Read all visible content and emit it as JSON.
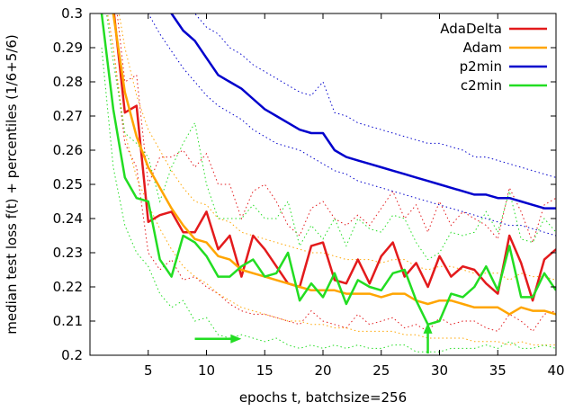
{
  "chart_data": {
    "type": "line",
    "xlabel": "epochs t, batchsize=256",
    "ylabel": "median test loss f(t) + percentiles (1/6+5/6)",
    "xlim": [
      0,
      40
    ],
    "ylim": [
      0.2,
      0.3
    ],
    "xticks": [
      5,
      10,
      15,
      20,
      25,
      30,
      35,
      40
    ],
    "yticks": [
      0.2,
      0.21,
      0.22,
      0.23,
      0.24,
      0.25,
      0.26,
      0.27,
      0.28,
      0.29,
      0.3
    ],
    "legend_position": "top-right",
    "grid": false,
    "series": [
      {
        "name": "AdaDelta",
        "color": "#e31a1c",
        "x": [
          1,
          2,
          3,
          4,
          5,
          6,
          7,
          8,
          9,
          10,
          11,
          12,
          13,
          14,
          15,
          16,
          17,
          18,
          19,
          20,
          21,
          22,
          23,
          24,
          25,
          26,
          27,
          28,
          29,
          30,
          31,
          32,
          33,
          34,
          35,
          36,
          37,
          38,
          39,
          40
        ],
        "median": [
          0.32,
          0.302,
          0.271,
          0.273,
          0.239,
          0.241,
          0.242,
          0.236,
          0.236,
          0.242,
          0.231,
          0.235,
          0.223,
          0.235,
          0.231,
          0.226,
          0.221,
          0.22,
          0.232,
          0.233,
          0.222,
          0.221,
          0.228,
          0.221,
          0.229,
          0.233,
          0.223,
          0.227,
          0.22,
          0.229,
          0.223,
          0.226,
          0.225,
          0.221,
          0.218,
          0.235,
          0.227,
          0.216,
          0.228,
          0.231
        ],
        "lower": [
          0.31,
          0.29,
          0.262,
          0.255,
          0.23,
          0.225,
          0.228,
          0.222,
          0.223,
          0.22,
          0.218,
          0.215,
          0.213,
          0.212,
          0.212,
          0.211,
          0.21,
          0.209,
          0.213,
          0.21,
          0.209,
          0.208,
          0.212,
          0.209,
          0.21,
          0.211,
          0.208,
          0.209,
          0.207,
          0.211,
          0.209,
          0.21,
          0.21,
          0.208,
          0.207,
          0.212,
          0.21,
          0.207,
          0.212,
          0.213
        ],
        "upper": [
          0.33,
          0.31,
          0.28,
          0.282,
          0.25,
          0.258,
          0.258,
          0.26,
          0.255,
          0.259,
          0.25,
          0.25,
          0.24,
          0.248,
          0.25,
          0.245,
          0.238,
          0.235,
          0.243,
          0.245,
          0.24,
          0.238,
          0.241,
          0.238,
          0.243,
          0.248,
          0.24,
          0.244,
          0.236,
          0.245,
          0.238,
          0.242,
          0.24,
          0.238,
          0.234,
          0.249,
          0.242,
          0.233,
          0.244,
          0.246
        ]
      },
      {
        "name": "Adam",
        "color": "#ffa500",
        "x": [
          1,
          2,
          3,
          4,
          5,
          6,
          7,
          8,
          9,
          10,
          11,
          12,
          13,
          14,
          15,
          16,
          17,
          18,
          19,
          20,
          21,
          22,
          23,
          24,
          25,
          26,
          27,
          28,
          29,
          30,
          31,
          32,
          33,
          34,
          35,
          36,
          37,
          38,
          39,
          40
        ],
        "median": [
          0.32,
          0.3,
          0.277,
          0.264,
          0.255,
          0.249,
          0.243,
          0.238,
          0.234,
          0.233,
          0.229,
          0.228,
          0.225,
          0.224,
          0.223,
          0.222,
          0.221,
          0.22,
          0.219,
          0.219,
          0.219,
          0.218,
          0.218,
          0.218,
          0.217,
          0.218,
          0.218,
          0.216,
          0.215,
          0.216,
          0.216,
          0.215,
          0.214,
          0.214,
          0.214,
          0.212,
          0.214,
          0.213,
          0.213,
          0.212
        ],
        "lower": [
          0.31,
          0.29,
          0.265,
          0.252,
          0.244,
          0.237,
          0.231,
          0.226,
          0.223,
          0.221,
          0.218,
          0.216,
          0.214,
          0.213,
          0.212,
          0.211,
          0.21,
          0.21,
          0.209,
          0.209,
          0.208,
          0.208,
          0.207,
          0.207,
          0.207,
          0.207,
          0.206,
          0.206,
          0.205,
          0.205,
          0.205,
          0.205,
          0.204,
          0.204,
          0.204,
          0.203,
          0.204,
          0.203,
          0.203,
          0.203
        ],
        "upper": [
          0.33,
          0.31,
          0.29,
          0.276,
          0.266,
          0.26,
          0.254,
          0.249,
          0.245,
          0.244,
          0.24,
          0.239,
          0.236,
          0.235,
          0.234,
          0.233,
          0.232,
          0.231,
          0.23,
          0.23,
          0.229,
          0.228,
          0.228,
          0.228,
          0.227,
          0.228,
          0.228,
          0.226,
          0.225,
          0.226,
          0.226,
          0.225,
          0.224,
          0.224,
          0.224,
          0.222,
          0.224,
          0.223,
          0.223,
          0.222
        ]
      },
      {
        "name": "p2min",
        "color": "#0000cc",
        "x": [
          1,
          2,
          3,
          4,
          5,
          6,
          7,
          8,
          9,
          10,
          11,
          12,
          13,
          14,
          15,
          16,
          17,
          18,
          19,
          20,
          21,
          22,
          23,
          24,
          25,
          26,
          27,
          28,
          29,
          30,
          31,
          32,
          33,
          34,
          35,
          36,
          37,
          38,
          39,
          40
        ],
        "median": [
          0.34,
          0.33,
          0.32,
          0.315,
          0.31,
          0.305,
          0.3,
          0.295,
          0.292,
          0.287,
          0.282,
          0.28,
          0.278,
          0.275,
          0.272,
          0.27,
          0.268,
          0.266,
          0.265,
          0.265,
          0.26,
          0.258,
          0.257,
          0.256,
          0.255,
          0.254,
          0.253,
          0.252,
          0.251,
          0.25,
          0.249,
          0.248,
          0.247,
          0.247,
          0.246,
          0.246,
          0.245,
          0.244,
          0.243,
          0.243
        ],
        "lower": [
          0.33,
          0.32,
          0.31,
          0.305,
          0.3,
          0.294,
          0.289,
          0.284,
          0.28,
          0.276,
          0.273,
          0.271,
          0.269,
          0.266,
          0.264,
          0.262,
          0.261,
          0.26,
          0.258,
          0.256,
          0.254,
          0.253,
          0.251,
          0.25,
          0.249,
          0.248,
          0.247,
          0.246,
          0.245,
          0.244,
          0.243,
          0.242,
          0.241,
          0.24,
          0.239,
          0.238,
          0.238,
          0.237,
          0.236,
          0.235
        ],
        "upper": [
          0.35,
          0.34,
          0.33,
          0.325,
          0.32,
          0.312,
          0.307,
          0.303,
          0.3,
          0.296,
          0.294,
          0.29,
          0.288,
          0.285,
          0.283,
          0.281,
          0.279,
          0.277,
          0.276,
          0.28,
          0.271,
          0.27,
          0.268,
          0.267,
          0.266,
          0.265,
          0.264,
          0.263,
          0.262,
          0.262,
          0.261,
          0.26,
          0.258,
          0.258,
          0.257,
          0.256,
          0.255,
          0.254,
          0.253,
          0.252
        ]
      },
      {
        "name": "c2min",
        "color": "#22dd22",
        "x": [
          1,
          2,
          3,
          4,
          5,
          6,
          7,
          8,
          9,
          10,
          11,
          12,
          13,
          14,
          15,
          16,
          17,
          18,
          19,
          20,
          21,
          22,
          23,
          24,
          25,
          26,
          27,
          28,
          29,
          30,
          31,
          32,
          33,
          34,
          35,
          36,
          37,
          38,
          39,
          40
        ],
        "median": [
          0.3,
          0.272,
          0.252,
          0.246,
          0.245,
          0.228,
          0.223,
          0.235,
          0.233,
          0.229,
          0.223,
          0.223,
          0.226,
          0.228,
          0.223,
          0.224,
          0.23,
          0.216,
          0.221,
          0.217,
          0.224,
          0.215,
          0.222,
          0.22,
          0.219,
          0.224,
          0.225,
          0.216,
          0.209,
          0.21,
          0.218,
          0.217,
          0.22,
          0.226,
          0.219,
          0.232,
          0.217,
          0.217,
          0.224,
          0.219
        ],
        "lower": [
          0.29,
          0.255,
          0.238,
          0.23,
          0.226,
          0.218,
          0.214,
          0.216,
          0.21,
          0.211,
          0.206,
          0.205,
          0.206,
          0.205,
          0.204,
          0.205,
          0.203,
          0.202,
          0.203,
          0.202,
          0.203,
          0.202,
          0.203,
          0.202,
          0.202,
          0.203,
          0.203,
          0.201,
          0.201,
          0.201,
          0.202,
          0.202,
          0.202,
          0.203,
          0.202,
          0.204,
          0.202,
          0.202,
          0.203,
          0.202
        ],
        "upper": [
          0.31,
          0.286,
          0.265,
          0.262,
          0.258,
          0.245,
          0.255,
          0.262,
          0.268,
          0.25,
          0.24,
          0.24,
          0.24,
          0.244,
          0.24,
          0.24,
          0.245,
          0.232,
          0.238,
          0.234,
          0.24,
          0.232,
          0.24,
          0.237,
          0.236,
          0.241,
          0.24,
          0.233,
          0.228,
          0.23,
          0.236,
          0.235,
          0.236,
          0.242,
          0.236,
          0.248,
          0.234,
          0.233,
          0.24,
          0.236
        ]
      }
    ],
    "annotations": [
      {
        "type": "arrow",
        "direction": "right",
        "color": "#22dd22",
        "x_from": 9,
        "x_to": 13,
        "y": 0.2048
      },
      {
        "type": "arrow",
        "direction": "up",
        "color": "#22dd22",
        "x": 29,
        "y_from": 0.2005,
        "y_to": 0.2095
      }
    ]
  }
}
